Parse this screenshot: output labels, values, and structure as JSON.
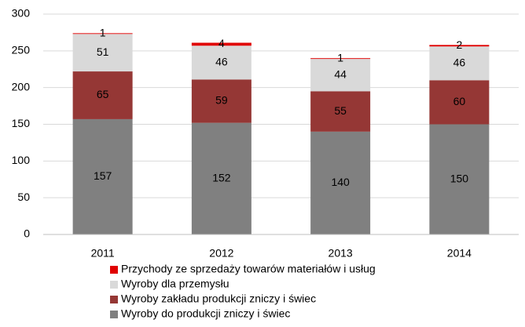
{
  "chart_data": {
    "type": "stacked_bar",
    "categories": [
      "2011",
      "2012",
      "2013",
      "2014"
    ],
    "series": [
      {
        "name": "Wyroby do produkcji zniczy i świec",
        "color": "#808080",
        "values": [
          157,
          152,
          140,
          150
        ]
      },
      {
        "name": "Wyroby zakładu produkcji zniczy i świec",
        "color": "#953735",
        "values": [
          65,
          59,
          55,
          60
        ]
      },
      {
        "name": "Wyroby dla przemysłu",
        "color": "#d9d9d9",
        "values": [
          51,
          46,
          44,
          46
        ]
      },
      {
        "name": "Przychody ze sprzedaży towarów materiałów i usług",
        "color": "#e00000",
        "values": [
          1,
          4,
          1,
          2
        ]
      }
    ],
    "ylim": [
      0,
      300
    ],
    "yticks": [
      0,
      50,
      100,
      150,
      200,
      250,
      300
    ],
    "grid": true,
    "legend": "bottom"
  }
}
